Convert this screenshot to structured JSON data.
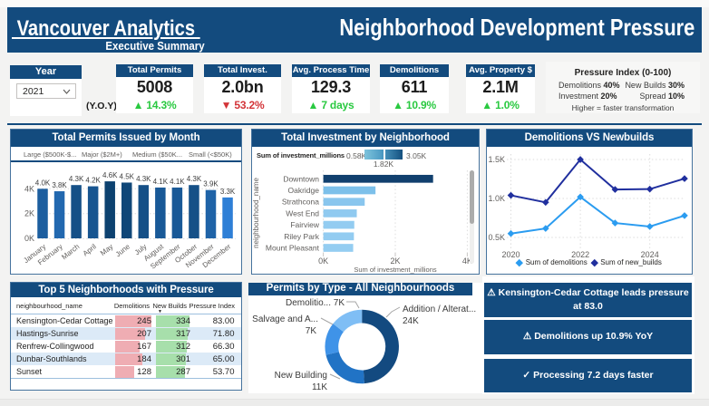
{
  "header": {
    "brand": " Vancouver Analytics ",
    "subtitle": "Executive Summary",
    "title": "Neighborhood Development Pressure"
  },
  "kpi_row": {
    "year_slicer": {
      "label": "Year",
      "value": "2021"
    },
    "yoy_label": "(Y.O.Y)",
    "cards": [
      {
        "title": "Total Permits",
        "value": "5008",
        "arrow": "up",
        "delta": "14.3%",
        "tone": "green"
      },
      {
        "title": "Total Invest.",
        "value": "2.0bn",
        "arrow": "down",
        "delta": "53.2%",
        "tone": "red"
      },
      {
        "title": "Avg. Process Time",
        "value": "129.3",
        "arrow": "up",
        "delta": "7 days",
        "tone": "green"
      },
      {
        "title": "Demolitions",
        "value": "611",
        "arrow": "up",
        "delta": "10.9%",
        "tone": "green"
      },
      {
        "title": "Avg. Property $",
        "value": "2.1M",
        "arrow": "up",
        "delta": "1.0%",
        "tone": "green"
      }
    ],
    "pressure_index": {
      "title": "Pressure Index (0-100)",
      "weights": [
        {
          "label": "Demolitions",
          "value": "40%"
        },
        {
          "label": "New Builds",
          "value": "30%"
        },
        {
          "label": "Investment",
          "value": "20%"
        },
        {
          "label": "Spread",
          "value": "10%"
        }
      ],
      "note": "Higher = faster transformation"
    }
  },
  "colors": {
    "navy": "#134B7E",
    "green": "#29C940",
    "red": "#D33438",
    "demolitions_line": "#2B9CF0",
    "new_builds_line": "#202F9E"
  },
  "chart_data": [
    {
      "id": "permits_by_month",
      "type": "bar",
      "title": "Total Permits Issued by Month",
      "legend": [
        "Large ($500K-$...",
        "Major ($2M+)",
        "Medium ($50K...",
        "Small (<$50K)"
      ],
      "categories": [
        "January",
        "February",
        "March",
        "April",
        "May",
        "June",
        "July",
        "August",
        "September",
        "October",
        "November",
        "December"
      ],
      "values": [
        4000,
        3800,
        4300,
        4200,
        4600,
        4500,
        4300,
        4100,
        4100,
        4300,
        3900,
        3300
      ],
      "labels": [
        "4.0K",
        "3.8K",
        "4.3K",
        "4.2K",
        "4.6K",
        "4.5K",
        "4.3K",
        "4.1K",
        "4.1K",
        "4.3K",
        "3.9K",
        "3.3K"
      ],
      "colors": [
        "#1C5E9F",
        "#2268AF",
        "#155087",
        "#175590",
        "#0D4270",
        "#104778",
        "#155087",
        "#195997",
        "#195997",
        "#155087",
        "#1F63A7",
        "#2E7FD6"
      ],
      "ylim": [
        0,
        4600
      ],
      "yticks": [
        "0K",
        "2K",
        "4K"
      ]
    },
    {
      "id": "investment_by_neighborhood",
      "type": "hbar",
      "title": "Total Investment by Neighborhood",
      "legend_label": "Sum of investment_millions",
      "legend_min": "0.58K",
      "legend_mid": "1.82K",
      "legend_max": "3.05K",
      "categories": [
        "Downtown",
        "Oakridge",
        "Strathcona",
        "West End",
        "Fairview",
        "Riley Park",
        "Mount Pleasant"
      ],
      "values": [
        3050,
        1450,
        1150,
        930,
        860,
        850,
        830
      ],
      "colors": [
        "#11406E",
        "#7CC0EA",
        "#89C6EE",
        "#90CAF0",
        "#93CCF1",
        "#93CCF1",
        "#94CDF1"
      ],
      "xlabel": "Sum of investment_millions",
      "ylabel": "neighbourhood_name",
      "xticks": [
        "0K",
        "2K",
        "4K"
      ],
      "xlim": [
        0,
        4000
      ]
    },
    {
      "id": "demolitions_vs_newbuilds",
      "type": "line",
      "title": "Demolitions VS Newbuilds",
      "x": [
        2020,
        2021,
        2022,
        2023,
        2024,
        2025
      ],
      "xticks": [
        "2020",
        "2022",
        "2024"
      ],
      "yticks": [
        "0.5K",
        "1.0K",
        "1.5K"
      ],
      "ylim": [
        500,
        1500
      ],
      "series": [
        {
          "name": "Sum of demolitions",
          "color": "#2B9CF0",
          "values": [
            550,
            615,
            1020,
            685,
            640,
            780
          ]
        },
        {
          "name": "Sum of new_builds",
          "color": "#202F9E",
          "values": [
            1040,
            950,
            1500,
            1115,
            1120,
            1255
          ]
        }
      ]
    },
    {
      "id": "permits_by_type",
      "type": "donut",
      "title": "Permits by Type - All Neighbourhoods",
      "slices": [
        {
          "label": "Addition / Alterat...",
          "value_label": "24K",
          "value": 24,
          "color": "#134A80"
        },
        {
          "label": "New Building",
          "value_label": "11K",
          "value": 11,
          "color": "#2173C5"
        },
        {
          "label": "Salvage and A...",
          "value_label": "7K",
          "value": 7,
          "color": "#3F93E8"
        },
        {
          "label": "Demolitio...",
          "value_label": "7K",
          "value": 7,
          "color": "#7FBEF5"
        }
      ]
    },
    {
      "id": "top5_table",
      "type": "table",
      "title": "Top 5 Neighborhoods with Pressure",
      "columns": [
        "neighbourhood_name",
        "Demolitions",
        "New Builds",
        "Pressure Index"
      ],
      "rows": [
        {
          "name": "Kensington-Cedar Cottage",
          "demolitions": 245,
          "new_builds": 334,
          "pressure": "83.00"
        },
        {
          "name": "Hastings-Sunrise",
          "demolitions": 207,
          "new_builds": 317,
          "pressure": "71.80"
        },
        {
          "name": "Renfrew-Collingwood",
          "demolitions": 167,
          "new_builds": 312,
          "pressure": "66.30"
        },
        {
          "name": "Dunbar-Southlands",
          "demolitions": 184,
          "new_builds": 301,
          "pressure": "65.00"
        },
        {
          "name": "Sunset",
          "demolitions": 128,
          "new_builds": 287,
          "pressure": "53.70"
        }
      ],
      "demolitions_max": 245,
      "new_builds_max": 334,
      "bar_colors": {
        "demolitions": "#EFADB3",
        "new_builds": "#A7DFAB"
      }
    }
  ],
  "insights": [
    {
      "icon": "⚠",
      "line1": "Kensington-Cedar Cottage leads pressure",
      "line2": "at 83.0"
    },
    {
      "icon": "⚠",
      "line1": "Demolitions up 10.9% YoY",
      "line2": ""
    },
    {
      "icon": "✓",
      "line1": "Processing 7.2 days faster",
      "line2": ""
    }
  ]
}
